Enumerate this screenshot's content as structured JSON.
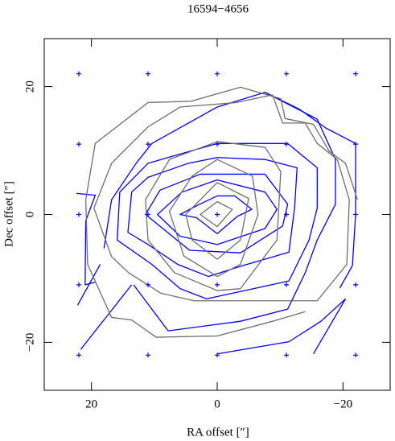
{
  "chart_data": {
    "type": "contour",
    "title": "16594−4656",
    "xlabel": "RA offset  [″]",
    "ylabel": "Dec offset  [″]",
    "xlim": [
      27.5,
      -27.5
    ],
    "ylim": [
      -27.5,
      27.5
    ],
    "xticks": [
      {
        "value": 20,
        "label": "20"
      },
      0,
      {
        "value": -20,
        "label": "−20"
      }
    ],
    "yticks": [
      {
        "value": -20,
        "label": "−20"
      },
      0,
      20
    ],
    "points": {
      "color": "#0000ff",
      "x": [
        22,
        11,
        0,
        -11,
        -22,
        22,
        11,
        0,
        -11,
        -22,
        22,
        11,
        0,
        -11,
        -22,
        22,
        11,
        0,
        -11,
        -22,
        22,
        11,
        0,
        -11,
        -22
      ],
      "y": [
        22,
        22,
        22,
        22,
        22,
        11,
        11,
        11,
        11,
        11,
        0,
        0,
        0,
        0,
        0,
        -11,
        -11,
        -11,
        -11,
        -11,
        -22,
        -22,
        -22,
        -22,
        -22
      ]
    },
    "series": [
      {
        "color": "#0000ff",
        "contours": [
          {
            "closed": true,
            "x": [
              5.9,
              3,
              0,
              -2.8,
              -5.5,
              -3.2,
              0,
              3.3
            ],
            "y": [
              0,
              1.5,
              2.9,
              2.9,
              0.8,
              -0.3,
              -3,
              -0.5
            ]
          },
          {
            "closed": true,
            "x": [
              9.5,
              5.6,
              0,
              -7.6,
              -9.5,
              -7.6,
              0,
              5.9
            ],
            "y": [
              0,
              3.5,
              5.4,
              3.5,
              0.8,
              -2.2,
              -4.7,
              -3.4
            ]
          },
          {
            "closed": true,
            "x": [
              11.4,
              9.1,
              2.7,
              -7.6,
              -11.2,
              -10.4,
              -3.7,
              4.4
            ],
            "y": [
              0,
              3.8,
              6.3,
              6.3,
              1.6,
              -1.8,
              -6,
              -5.6
            ]
          },
          {
            "closed": true,
            "x": [
              14.2,
              13.6,
              11,
              4.6,
              0,
              -7.6,
              -12.7,
              -12.3,
              -11.4,
              -3.7,
              1.4,
              6.3,
              11
            ],
            "y": [
              -2.8,
              3.5,
              5.8,
              8,
              8.9,
              8.6,
              7.3,
              1,
              -5.9,
              -8.1,
              -9.7,
              -7.8,
              -4.7
            ]
          },
          {
            "closed": true,
            "x": [
              15.9,
              15.5,
              11,
              0,
              -11.2,
              -15.9,
              -15.9,
              -14.6,
              -11.4,
              1.7,
              5.9,
              10.4
            ],
            "y": [
              -4,
              3.5,
              8,
              11.1,
              11.1,
              7.3,
              1,
              -4,
              -10.4,
              -13.2,
              -11.6,
              -7.8
            ]
          },
          {
            "closed": false,
            "x": [
              18,
              16.8,
              12.9,
              10.4,
              0,
              -7.6,
              -15.9,
              -18.8,
              -18.8,
              -15.9,
              -14,
              -11.2,
              -3.7,
              7.8,
              13.3
            ],
            "y": [
              -5.3,
              2.3,
              8,
              11.1,
              16.8,
              19.1,
              14.9,
              8.6,
              1.6,
              -4,
              -9.1,
              -14.8,
              -16.7,
              -18.2,
              -11
            ]
          },
          {
            "closed": false,
            "x": [
              -7.6,
              -13,
              -17.3,
              -22,
              -22,
              -21.5,
              -19.5
            ],
            "y": [
              19.1,
              16.5,
              13.5,
              11.1,
              0,
              -8,
              -11.5
            ]
          },
          {
            "closed": false,
            "x": [
              22.4,
              19.4,
              20.9,
              21,
              19.4
            ],
            "y": [
              3.3,
              3,
              -1,
              -11,
              -10.6
            ]
          },
          {
            "closed": false,
            "x": [
              21.7,
              13.6
            ],
            "y": [
              -21.1,
              -11
            ]
          },
          {
            "closed": false,
            "x": [
              18.6,
              22.2
            ],
            "y": [
              -7.8,
              -14.2
            ]
          },
          {
            "closed": false,
            "x": [
              0,
              -11.4,
              -16.5,
              -20.4
            ],
            "y": [
              -21.8,
              -19.9,
              -16.7,
              -13.2
            ]
          },
          {
            "closed": false,
            "x": [
              -15.3,
              -20.4
            ],
            "y": [
              -21.8,
              -13.2
            ]
          }
        ]
      },
      {
        "color": "#6e6e6e",
        "contours": [
          {
            "closed": true,
            "x": [
              2.7,
              0,
              -2.4,
              0
            ],
            "y": [
              0,
              2,
              0.8,
              -1.9
            ]
          },
          {
            "closed": true,
            "x": [
              5,
              0,
              -5,
              -3.7,
              0,
              4
            ],
            "y": [
              0,
              5,
              2.5,
              -4,
              -7,
              -4
            ]
          },
          {
            "closed": true,
            "x": [
              7.6,
              4,
              0,
              -5.6,
              -6.5,
              -3.7,
              0,
              5.3
            ],
            "y": [
              0.5,
              6,
              8.6,
              6,
              0,
              -7.8,
              -9.7,
              -6.5
            ]
          },
          {
            "closed": true,
            "x": [
              11.4,
              7.6,
              0,
              -7.6,
              -10.1,
              -9.5,
              -3.7,
              0,
              6.8,
              11
            ],
            "y": [
              2.3,
              8.6,
              11.4,
              10.5,
              6.7,
              -4,
              -11.6,
              -11.9,
              -9.1,
              -4
            ]
          },
          {
            "closed": true,
            "x": [
              19.6,
              16.8,
              11,
              5.9,
              -3,
              -8.8,
              -10.4,
              -14,
              -15.9,
              -19.1,
              -21,
              -20.6,
              -15.9,
              -13.3,
              -3.7,
              3.7,
              9,
              14.1,
              16.8
            ],
            "y": [
              1,
              8,
              13.7,
              16.8,
              17.5,
              18.7,
              14.3,
              14.3,
              11.1,
              8.6,
              2.3,
              -7.8,
              -13.5,
              -13.5,
              -13.5,
              -13.5,
              -12.3,
              -9.1,
              -6.6
            ]
          },
          {
            "closed": false,
            "x": [
              -22.3,
              -20.4,
              -17.8,
              -15.3,
              -10.8,
              -10.1,
              -3.7,
              4.2,
              11,
              19.4,
              20.9,
              20.6,
              16.8,
              13.6,
              9.7,
              0,
              -8.8,
              -14
            ],
            "y": [
              2.3,
              8,
              9.9,
              14.1,
              15,
              18.1,
              19.9,
              17.7,
              17.5,
              11.1,
              2.3,
              -7.8,
              -16.1,
              -16.5,
              -19.2,
              -19,
              -16.7,
              -15.2
            ]
          }
        ]
      }
    ]
  }
}
